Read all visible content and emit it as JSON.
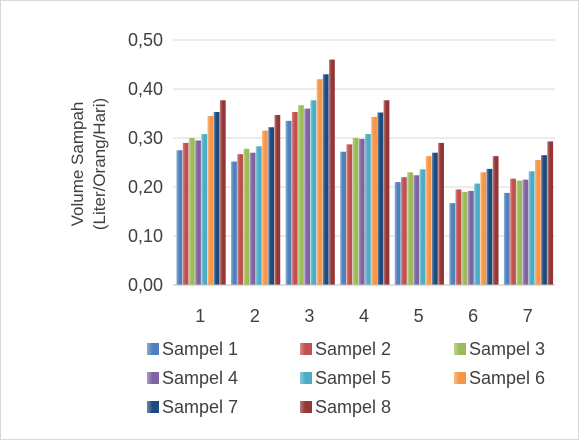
{
  "chart_data": {
    "type": "bar",
    "title": "",
    "xlabel": "",
    "ylabel": "Volume Sampah",
    "ylabel_line2": "(Liter/Orang/Hari)",
    "ylim": [
      0,
      0.5
    ],
    "yticks": [
      0.0,
      0.1,
      0.2,
      0.3,
      0.4,
      0.5
    ],
    "ytick_labels": [
      "0,00",
      "0,10",
      "0,20",
      "0,30",
      "0,40",
      "0,50"
    ],
    "grid": true,
    "legend_position": "bottom",
    "categories": [
      "1",
      "2",
      "3",
      "4",
      "5",
      "6",
      "7"
    ],
    "series": [
      {
        "name": "Sampel 1",
        "color": "#4F81BD",
        "values": [
          0.275,
          0.252,
          0.335,
          0.272,
          0.21,
          0.167,
          0.188
        ]
      },
      {
        "name": "Sampel 2",
        "color": "#C0504D",
        "values": [
          0.29,
          0.267,
          0.353,
          0.287,
          0.22,
          0.195,
          0.217
        ]
      },
      {
        "name": "Sampel 3",
        "color": "#9BBB59",
        "values": [
          0.3,
          0.278,
          0.367,
          0.3,
          0.23,
          0.19,
          0.213
        ]
      },
      {
        "name": "Sampel 4",
        "color": "#8064A2",
        "values": [
          0.295,
          0.27,
          0.36,
          0.298,
          0.224,
          0.192,
          0.215
        ]
      },
      {
        "name": "Sampel 5",
        "color": "#4BACC6",
        "values": [
          0.308,
          0.283,
          0.377,
          0.308,
          0.236,
          0.207,
          0.232
        ]
      },
      {
        "name": "Sampel 6",
        "color": "#F79646",
        "values": [
          0.345,
          0.315,
          0.42,
          0.343,
          0.263,
          0.23,
          0.255
        ]
      },
      {
        "name": "Sampel 7",
        "color": "#1F497D",
        "values": [
          0.353,
          0.322,
          0.43,
          0.352,
          0.27,
          0.237,
          0.265
        ]
      },
      {
        "name": "Sampel 8",
        "color": "#943634",
        "values": [
          0.377,
          0.347,
          0.46,
          0.377,
          0.29,
          0.263,
          0.293
        ]
      }
    ]
  }
}
